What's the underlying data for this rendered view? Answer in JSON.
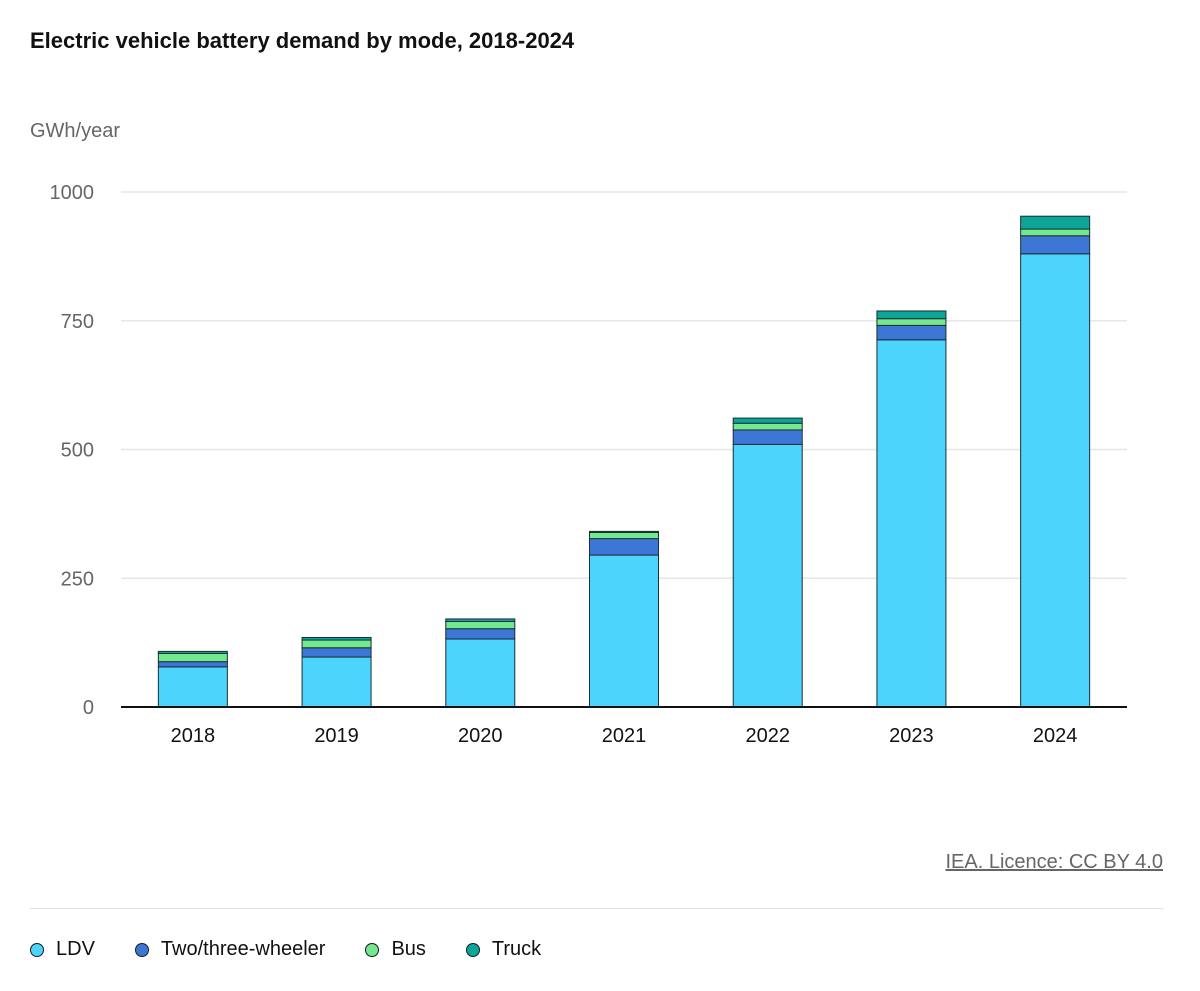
{
  "chart_data": {
    "type": "bar",
    "stacked": true,
    "title": "Electric vehicle battery demand by mode, 2018-2024",
    "ylabel": "GWh/year",
    "xlabel": "",
    "categories": [
      "2018",
      "2019",
      "2020",
      "2021",
      "2022",
      "2023",
      "2024"
    ],
    "ylim": [
      0,
      1000
    ],
    "yticks": [
      0,
      250,
      500,
      750,
      1000
    ],
    "grid": true,
    "legend_position": "bottom-left",
    "series": [
      {
        "name": "LDV",
        "color": "#4dd4fc",
        "values": [
          78,
          97,
          132,
          295,
          510,
          713,
          880
        ]
      },
      {
        "name": "Two/three-wheeler",
        "color": "#3e76d6",
        "values": [
          10,
          18,
          20,
          32,
          28,
          28,
          35
        ]
      },
      {
        "name": "Bus",
        "color": "#74e88e",
        "values": [
          16,
          15,
          14,
          12,
          13,
          13,
          13
        ]
      },
      {
        "name": "Truck",
        "color": "#0ca598",
        "values": [
          4,
          5,
          5,
          2,
          10,
          15,
          25
        ]
      }
    ]
  },
  "source": {
    "label": "IEA. Licence: CC BY 4.0"
  }
}
